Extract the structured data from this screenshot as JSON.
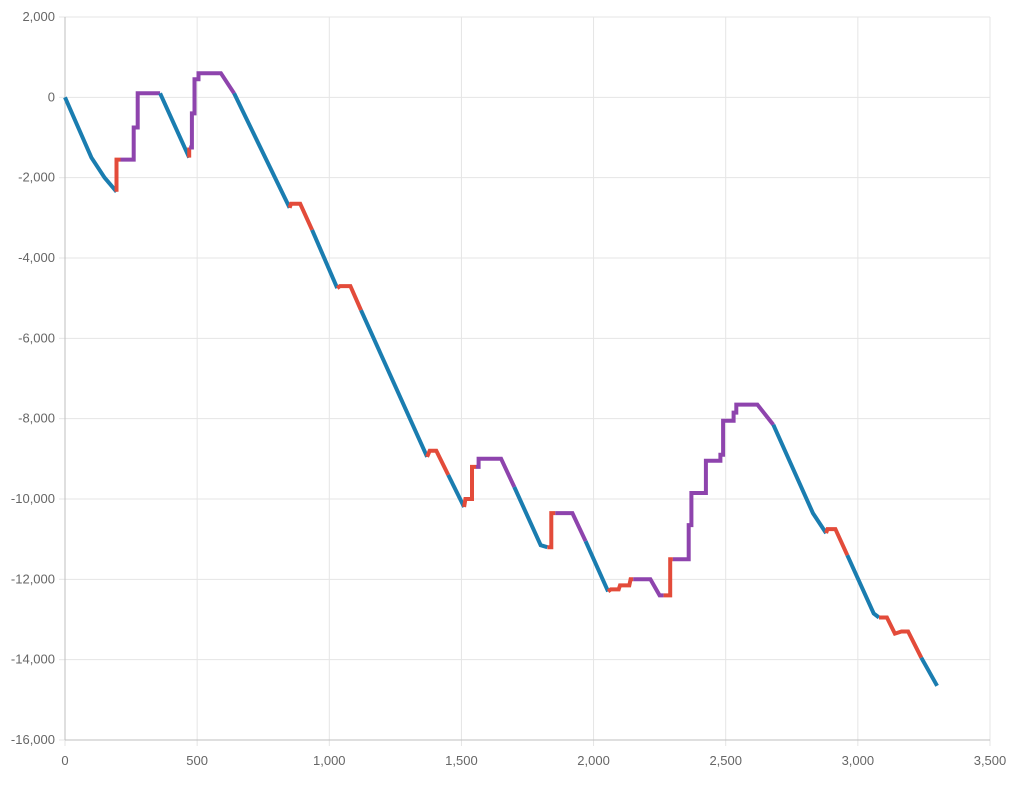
{
  "chart_data": {
    "type": "line",
    "title": "",
    "xlabel": "",
    "ylabel": "",
    "xlim": [
      0,
      3500
    ],
    "ylim": [
      -16000,
      2000
    ],
    "x_ticks": [
      0,
      500,
      1000,
      1500,
      2000,
      2500,
      3000,
      3500
    ],
    "y_ticks": [
      2000,
      0,
      -2000,
      -4000,
      -6000,
      -8000,
      -10000,
      -12000,
      -14000,
      -16000
    ],
    "x_tick_labels": [
      "0",
      "500",
      "1,000",
      "1,500",
      "2,000",
      "2,500",
      "3,000",
      "3,500"
    ],
    "y_tick_labels": [
      "2,000",
      "0",
      "-2,000",
      "-4,000",
      "-6,000",
      "-8,000",
      "-10,000",
      "-12,000",
      "-14,000",
      "-16,000"
    ],
    "grid": true,
    "legend": "none",
    "colors": {
      "blue": "#1a7db0",
      "red": "#e34b3a",
      "purple": "#8e44ad"
    },
    "segments": [
      {
        "color": "blue",
        "points": [
          [
            0,
            0
          ],
          [
            100,
            -1500
          ],
          [
            150,
            -2000
          ],
          [
            195,
            -2350
          ]
        ]
      },
      {
        "color": "red",
        "points": [
          [
            195,
            -2350
          ],
          [
            195,
            -1550
          ],
          [
            210,
            -1550
          ]
        ]
      },
      {
        "color": "purple",
        "points": [
          [
            210,
            -1550
          ],
          [
            260,
            -1550
          ],
          [
            260,
            -750
          ],
          [
            275,
            -750
          ],
          [
            275,
            100
          ],
          [
            360,
            100
          ]
        ]
      },
      {
        "color": "blue",
        "points": [
          [
            360,
            100
          ],
          [
            470,
            -1500
          ]
        ]
      },
      {
        "color": "red",
        "points": [
          [
            470,
            -1500
          ],
          [
            470,
            -1250
          ]
        ]
      },
      {
        "color": "purple",
        "points": [
          [
            470,
            -1250
          ],
          [
            480,
            -1250
          ],
          [
            480,
            -400
          ],
          [
            490,
            -400
          ],
          [
            490,
            450
          ],
          [
            505,
            450
          ],
          [
            505,
            600
          ],
          [
            590,
            600
          ],
          [
            640,
            100
          ]
        ]
      },
      {
        "color": "blue",
        "points": [
          [
            640,
            100
          ],
          [
            850,
            -2750
          ]
        ]
      },
      {
        "color": "red",
        "points": [
          [
            850,
            -2750
          ],
          [
            855,
            -2650
          ],
          [
            890,
            -2650
          ],
          [
            935,
            -3300
          ]
        ]
      },
      {
        "color": "blue",
        "points": [
          [
            935,
            -3300
          ],
          [
            1030,
            -4750
          ]
        ]
      },
      {
        "color": "red",
        "points": [
          [
            1030,
            -4750
          ],
          [
            1040,
            -4700
          ],
          [
            1080,
            -4700
          ],
          [
            1120,
            -5300
          ]
        ]
      },
      {
        "color": "blue",
        "points": [
          [
            1120,
            -5300
          ],
          [
            1370,
            -8950
          ]
        ]
      },
      {
        "color": "red",
        "points": [
          [
            1370,
            -8950
          ],
          [
            1380,
            -8800
          ],
          [
            1405,
            -8800
          ],
          [
            1450,
            -9400
          ]
        ]
      },
      {
        "color": "blue",
        "points": [
          [
            1450,
            -9400
          ],
          [
            1510,
            -10200
          ]
        ]
      },
      {
        "color": "red",
        "points": [
          [
            1510,
            -10200
          ],
          [
            1515,
            -10000
          ],
          [
            1540,
            -10000
          ],
          [
            1540,
            -9200
          ],
          [
            1555,
            -9200
          ]
        ]
      },
      {
        "color": "purple",
        "points": [
          [
            1555,
            -9200
          ],
          [
            1565,
            -9200
          ],
          [
            1565,
            -9000
          ],
          [
            1650,
            -9000
          ],
          [
            1700,
            -9700
          ]
        ]
      },
      {
        "color": "blue",
        "points": [
          [
            1700,
            -9700
          ],
          [
            1800,
            -11150
          ],
          [
            1825,
            -11200
          ]
        ]
      },
      {
        "color": "red",
        "points": [
          [
            1825,
            -11200
          ],
          [
            1840,
            -11200
          ],
          [
            1840,
            -10350
          ],
          [
            1855,
            -10350
          ]
        ]
      },
      {
        "color": "purple",
        "points": [
          [
            1855,
            -10350
          ],
          [
            1920,
            -10350
          ],
          [
            1970,
            -11050
          ]
        ]
      },
      {
        "color": "blue",
        "points": [
          [
            1970,
            -11050
          ],
          [
            2055,
            -12300
          ]
        ]
      },
      {
        "color": "red",
        "points": [
          [
            2055,
            -12300
          ],
          [
            2065,
            -12250
          ],
          [
            2095,
            -12250
          ],
          [
            2100,
            -12150
          ],
          [
            2135,
            -12150
          ],
          [
            2140,
            -12000
          ],
          [
            2150,
            -12000
          ]
        ]
      },
      {
        "color": "purple",
        "points": [
          [
            2150,
            -12000
          ],
          [
            2215,
            -12000
          ],
          [
            2250,
            -12400
          ],
          [
            2265,
            -12400
          ]
        ]
      },
      {
        "color": "red",
        "points": [
          [
            2265,
            -12400
          ],
          [
            2290,
            -12400
          ],
          [
            2290,
            -11500
          ],
          [
            2300,
            -11500
          ]
        ]
      },
      {
        "color": "purple",
        "points": [
          [
            2300,
            -11500
          ],
          [
            2360,
            -11500
          ],
          [
            2360,
            -10650
          ],
          [
            2370,
            -10650
          ],
          [
            2370,
            -9850
          ],
          [
            2425,
            -9850
          ],
          [
            2425,
            -9050
          ],
          [
            2480,
            -9050
          ],
          [
            2480,
            -8900
          ],
          [
            2490,
            -8900
          ],
          [
            2490,
            -8050
          ],
          [
            2530,
            -8050
          ],
          [
            2530,
            -7850
          ],
          [
            2540,
            -7850
          ],
          [
            2540,
            -7650
          ],
          [
            2620,
            -7650
          ],
          [
            2680,
            -8150
          ]
        ]
      },
      {
        "color": "blue",
        "points": [
          [
            2680,
            -8150
          ],
          [
            2830,
            -10350
          ],
          [
            2880,
            -10850
          ]
        ]
      },
      {
        "color": "red",
        "points": [
          [
            2880,
            -10850
          ],
          [
            2885,
            -10750
          ],
          [
            2915,
            -10750
          ],
          [
            2960,
            -11400
          ]
        ]
      },
      {
        "color": "blue",
        "points": [
          [
            2960,
            -11400
          ],
          [
            3060,
            -12850
          ],
          [
            3080,
            -12950
          ]
        ]
      },
      {
        "color": "red",
        "points": [
          [
            3080,
            -12950
          ],
          [
            3110,
            -12950
          ],
          [
            3140,
            -13350
          ],
          [
            3165,
            -13300
          ],
          [
            3190,
            -13300
          ],
          [
            3240,
            -13950
          ]
        ]
      },
      {
        "color": "blue",
        "points": [
          [
            3240,
            -13950
          ],
          [
            3300,
            -14650
          ]
        ]
      }
    ]
  }
}
